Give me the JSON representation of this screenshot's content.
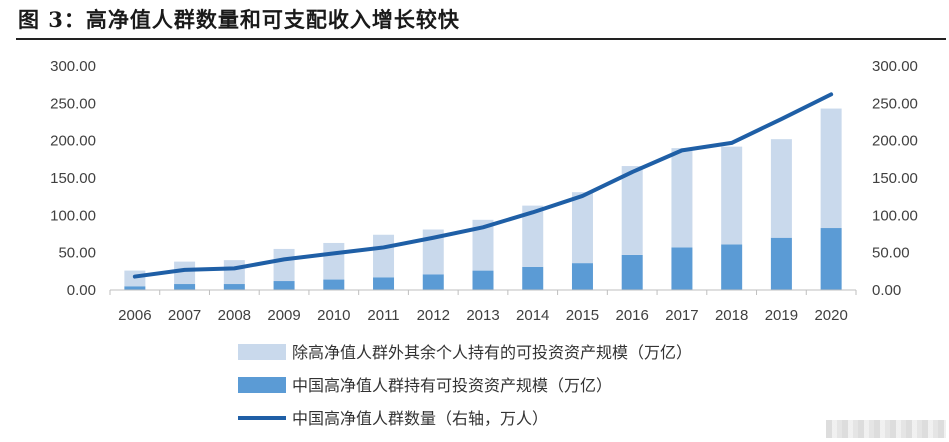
{
  "figure": {
    "title": "图 3：高净值人群数量和可支配收入增长较快",
    "watermark": "（水印）"
  },
  "colors": {
    "bar_light": "#c9d9ec",
    "bar_dark": "#5b9bd5",
    "line": "#1f5fa6",
    "axis": "#bfbfbf",
    "text": "#404040"
  },
  "chart_data": {
    "type": "bar",
    "categories": [
      "2006",
      "2007",
      "2008",
      "2009",
      "2010",
      "2011",
      "2012",
      "2013",
      "2014",
      "2015",
      "2016",
      "2017",
      "2018",
      "2019",
      "2020"
    ],
    "y_left": {
      "ticks": [
        "0.00",
        "50.00",
        "100.00",
        "150.00",
        "200.00",
        "250.00",
        "300.00"
      ],
      "ylim": [
        0,
        300
      ]
    },
    "y_right": {
      "ticks": [
        "0.00",
        "50.00",
        "100.00",
        "150.00",
        "200.00",
        "250.00",
        "300.00"
      ],
      "ylim": [
        0,
        300
      ]
    },
    "stacked": true,
    "series": [
      {
        "name": "中国高净值人群持有可投资资产规模（万亿）",
        "kind": "bar-bottom",
        "values": [
          5,
          8,
          8,
          12,
          14,
          17,
          21,
          26,
          31,
          36,
          47,
          57,
          61,
          70,
          83
        ]
      },
      {
        "name": "除高净值人群外其余个人持有的可投资资产规模（万亿）",
        "kind": "bar-top",
        "values": [
          21,
          30,
          32,
          43,
          49,
          57,
          60,
          68,
          82,
          95,
          119,
          133,
          131,
          132,
          160
        ]
      },
      {
        "name": "中国高净值人群数量（右轴，万人）",
        "kind": "line",
        "axis": "right",
        "values": [
          18,
          27,
          29,
          41,
          49,
          57,
          70,
          84,
          104,
          126,
          158,
          187,
          197,
          229,
          262
        ]
      }
    ],
    "legend": {
      "placement": "bottom-center",
      "items": [
        "除高净值人群外其余个人持有的可投资资产规模（万亿）",
        "中国高净值人群持有可投资资产规模（万亿）",
        "中国高净值人群数量（右轴，万人）"
      ]
    },
    "grid": false
  }
}
